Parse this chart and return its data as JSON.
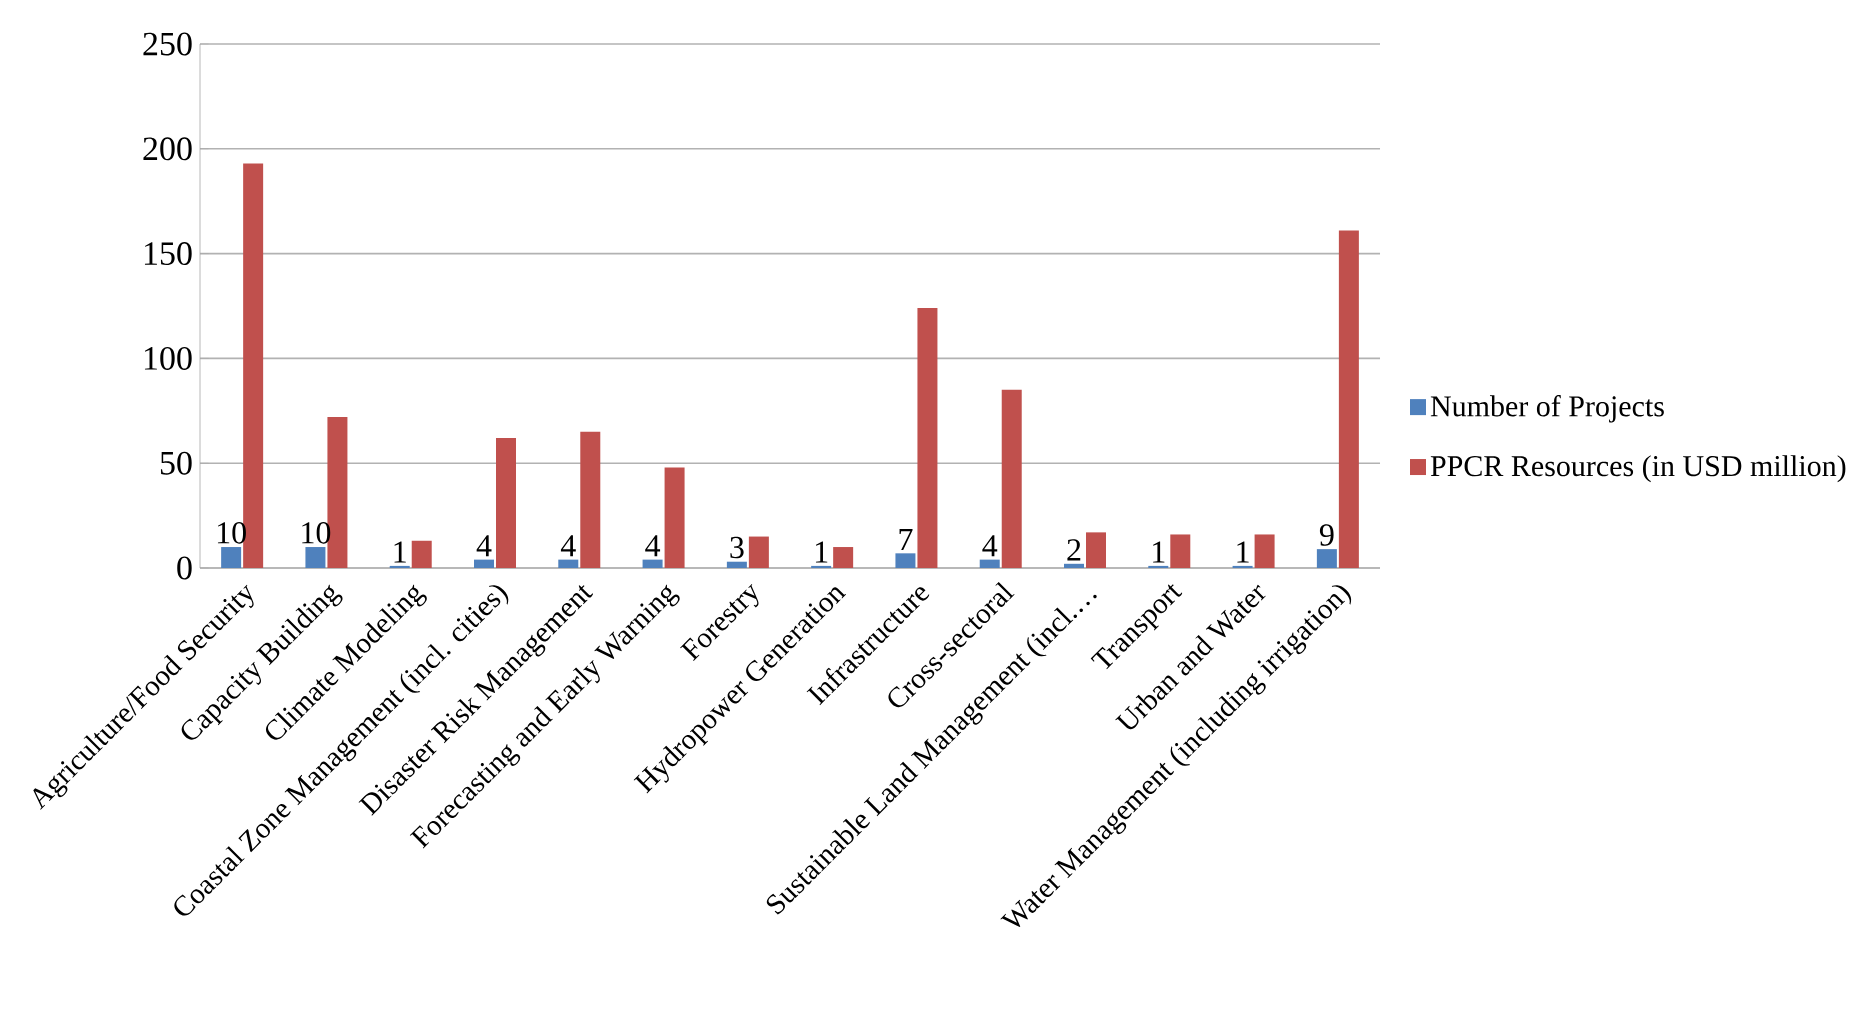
{
  "chart_data": {
    "type": "bar",
    "categories": [
      "Agriculture/Food Security",
      "Capacity Building",
      "Climate Modeling",
      "Coastal Zone Management (incl. cities)",
      "Disaster Risk Management",
      "Forecasting and Early Warning",
      "Forestry",
      "Hydropower Generation",
      "Infrastructure",
      "Cross-sectoral",
      "Sustainable Land Management (incl.…",
      "Transport",
      "Urban and Water",
      "Water Management (including irrigation)"
    ],
    "series": [
      {
        "name": "Number of Projects",
        "color": "#4f81bd",
        "values": [
          10,
          10,
          1,
          4,
          4,
          4,
          3,
          1,
          7,
          4,
          2,
          1,
          1,
          9
        ],
        "value_labels": [
          "10",
          "10",
          "1",
          "4",
          "4",
          "4",
          "3",
          "1",
          "7",
          "4",
          "2",
          "1",
          "1",
          "9"
        ]
      },
      {
        "name": "PPCR Resources (in USD million)",
        "color": "#c0504d",
        "values": [
          193,
          72,
          13,
          62,
          65,
          48,
          15,
          10,
          124,
          85,
          17,
          16,
          16,
          161
        ]
      }
    ],
    "ylim": [
      0,
      250
    ],
    "yticks": [
      0,
      50,
      100,
      150,
      200,
      250
    ],
    "grid": "y",
    "legend": "right"
  }
}
